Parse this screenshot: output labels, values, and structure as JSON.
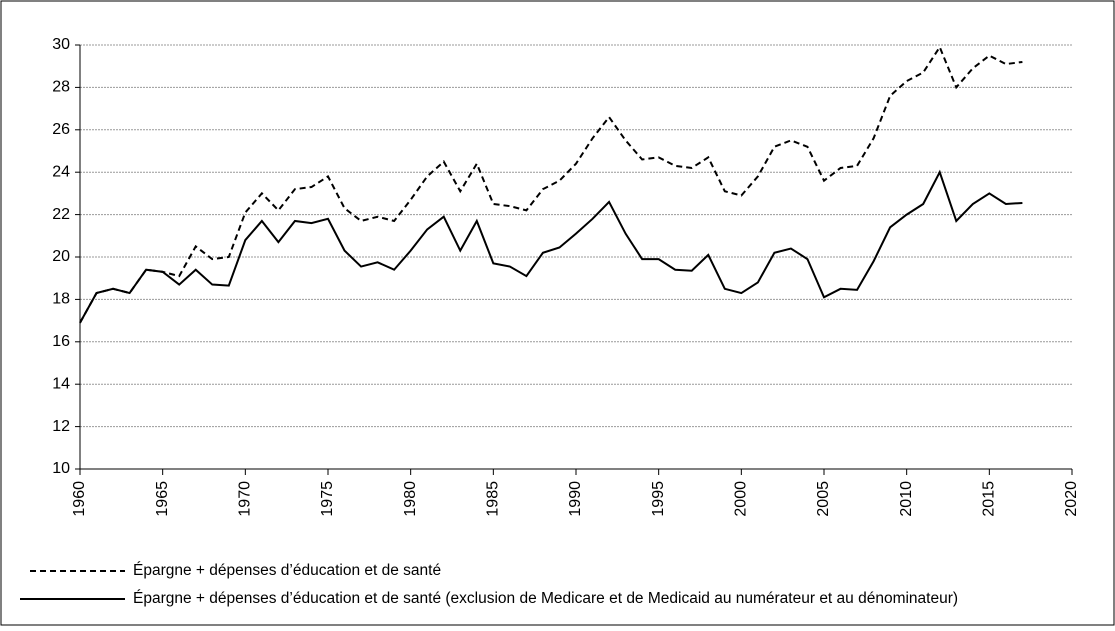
{
  "chart_data": {
    "type": "line",
    "x": [
      1960,
      1961,
      1962,
      1963,
      1964,
      1965,
      1966,
      1967,
      1968,
      1969,
      1970,
      1971,
      1972,
      1973,
      1974,
      1975,
      1976,
      1977,
      1978,
      1979,
      1980,
      1981,
      1982,
      1983,
      1984,
      1985,
      1986,
      1987,
      1988,
      1989,
      1990,
      1991,
      1992,
      1993,
      1994,
      1995,
      1996,
      1997,
      1998,
      1999,
      2000,
      2001,
      2002,
      2003,
      2004,
      2005,
      2006,
      2007,
      2008,
      2009,
      2010,
      2011,
      2012,
      2013,
      2014,
      2015,
      2016,
      2017
    ],
    "series": [
      {
        "name": "Épargne + dépenses d’éducation et de santé",
        "color": "#000000",
        "dash": true,
        "values": [
          16.9,
          18.3,
          18.5,
          18.3,
          19.4,
          19.3,
          19.1,
          20.5,
          19.9,
          20.0,
          22.1,
          23.0,
          22.2,
          23.2,
          23.3,
          23.8,
          22.3,
          21.7,
          21.9,
          21.7,
          22.7,
          23.8,
          24.5,
          23.1,
          24.4,
          22.5,
          22.4,
          22.2,
          23.2,
          23.6,
          24.4,
          25.6,
          26.6,
          25.5,
          24.6,
          24.7,
          24.3,
          24.2,
          24.7,
          23.1,
          22.9,
          23.8,
          25.2,
          25.5,
          25.2,
          23.6,
          24.2,
          24.3,
          25.6,
          27.6,
          28.3,
          28.7,
          29.9,
          28.0,
          28.9,
          29.5,
          29.1,
          29.2
        ]
      },
      {
        "name": "Épargne + dépenses d’éducation et de santé (exclusion de Medicare et de Medicaid au numérateur et au dénominateur)",
        "color": "#000000",
        "dash": false,
        "values": [
          16.9,
          18.3,
          18.5,
          18.3,
          19.4,
          19.3,
          18.7,
          19.4,
          18.7,
          18.65,
          20.8,
          21.7,
          20.7,
          21.7,
          21.6,
          21.8,
          20.3,
          19.55,
          19.75,
          19.4,
          20.3,
          21.3,
          21.9,
          20.3,
          21.7,
          19.7,
          19.55,
          19.1,
          20.2,
          20.45,
          21.1,
          21.8,
          22.6,
          21.1,
          19.9,
          19.9,
          19.4,
          19.35,
          20.1,
          18.5,
          18.3,
          18.8,
          20.2,
          20.4,
          19.9,
          18.1,
          18.5,
          18.45,
          19.8,
          21.4,
          22.0,
          22.5,
          24.0,
          21.7,
          22.5,
          23.0,
          22.5,
          22.55
        ]
      }
    ],
    "xlim": [
      1960,
      2020
    ],
    "xticks": [
      1960,
      1965,
      1970,
      1975,
      1980,
      1985,
      1990,
      1995,
      2000,
      2005,
      2010,
      2015,
      2020
    ],
    "ylim": [
      10,
      30
    ],
    "yticks": [
      10,
      12,
      14,
      16,
      18,
      20,
      22,
      24,
      26,
      28,
      30
    ],
    "grid": true
  }
}
